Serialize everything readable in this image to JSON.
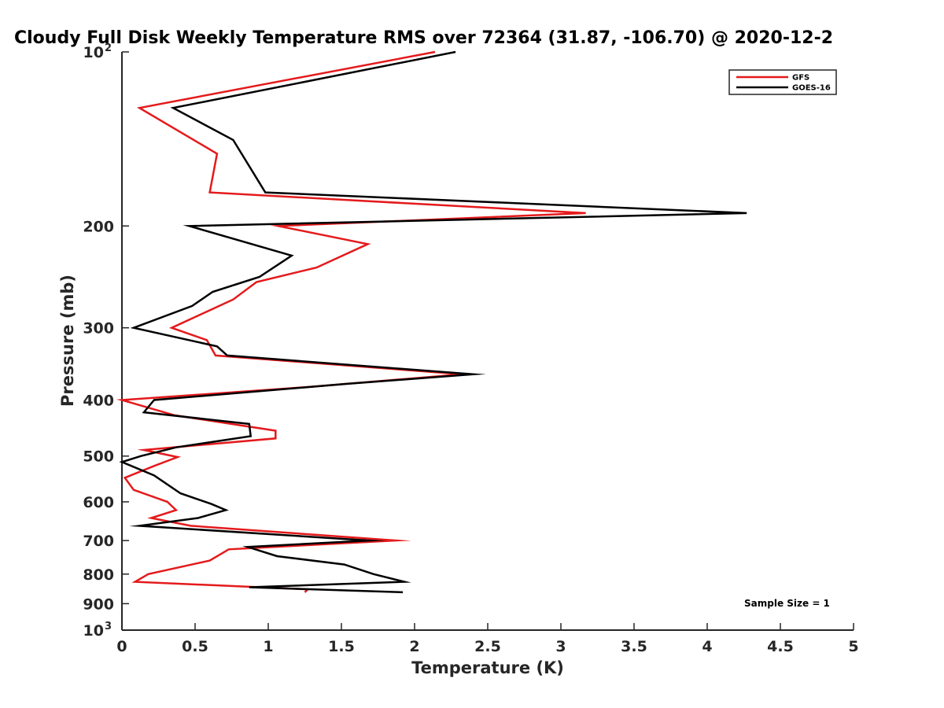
{
  "chart_data": {
    "type": "line",
    "title": "Cloudy Full Disk Weekly Temperature RMS over 72364 (31.87, -106.70) @ 2020-12-2",
    "xlabel": "Temperature (K)",
    "ylabel": "Pressure (mb)",
    "xlim": [
      0,
      5
    ],
    "ylim": [
      100,
      1000
    ],
    "y_scale": "log",
    "y_reversed": true,
    "x_ticks": [
      "0",
      "0.5",
      "1",
      "1.5",
      "2",
      "2.5",
      "3",
      "3.5",
      "4",
      "4.5",
      "5"
    ],
    "y_ticks": [
      {
        "value": 100,
        "base": "10",
        "exp": "2"
      },
      {
        "value": 200,
        "label": "200"
      },
      {
        "value": 300,
        "label": "300"
      },
      {
        "value": 400,
        "label": "400"
      },
      {
        "value": 500,
        "label": "500"
      },
      {
        "value": 600,
        "label": "600"
      },
      {
        "value": 700,
        "label": "700"
      },
      {
        "value": 800,
        "label": "800"
      },
      {
        "value": 900,
        "label": "900"
      },
      {
        "value": 1000,
        "base": "10",
        "exp": "3"
      }
    ],
    "grid": false,
    "legend_position": "top-right",
    "annotation": "Sample Size = 1",
    "series": [
      {
        "name": "GFS",
        "color": "#e41a1c",
        "points": [
          [
            2.14,
            100
          ],
          [
            0.12,
            125
          ],
          [
            0.65,
            150
          ],
          [
            0.6,
            175
          ],
          [
            3.17,
            190
          ],
          [
            1.07,
            200
          ],
          [
            1.68,
            215
          ],
          [
            1.33,
            236
          ],
          [
            0.92,
            250
          ],
          [
            0.76,
            268
          ],
          [
            0.34,
            300
          ],
          [
            0.58,
            315
          ],
          [
            0.64,
            335
          ],
          [
            2.33,
            361
          ],
          [
            1.26,
            380
          ],
          [
            0.0,
            400
          ],
          [
            0.36,
            425
          ],
          [
            1.05,
            452
          ],
          [
            1.05,
            466
          ],
          [
            0.15,
            488
          ],
          [
            0.38,
            502
          ],
          [
            0.22,
            520
          ],
          [
            0.02,
            545
          ],
          [
            0.08,
            572
          ],
          [
            0.31,
            600
          ],
          [
            0.37,
            620
          ],
          [
            0.2,
            640
          ],
          [
            0.47,
            660
          ],
          [
            1.87,
            700
          ],
          [
            0.73,
            725
          ],
          [
            0.6,
            758
          ],
          [
            0.18,
            800
          ],
          [
            0.09,
            825
          ],
          [
            1.27,
            850
          ],
          [
            1.25,
            860
          ]
        ]
      },
      {
        "name": "GOES-16",
        "color": "#000000",
        "points": [
          [
            2.28,
            100
          ],
          [
            0.35,
            125
          ],
          [
            0.76,
            142
          ],
          [
            0.98,
            175
          ],
          [
            4.27,
            190
          ],
          [
            0.46,
            200
          ],
          [
            1.16,
            225
          ],
          [
            0.94,
            245
          ],
          [
            0.62,
            260
          ],
          [
            0.48,
            275
          ],
          [
            0.08,
            300
          ],
          [
            0.65,
            323
          ],
          [
            0.72,
            335
          ],
          [
            2.4,
            361
          ],
          [
            1.54,
            375
          ],
          [
            0.22,
            400
          ],
          [
            0.15,
            420
          ],
          [
            0.87,
            440
          ],
          [
            0.88,
            462
          ],
          [
            0.37,
            483
          ],
          [
            0.13,
            500
          ],
          [
            0.0,
            512
          ],
          [
            0.22,
            540
          ],
          [
            0.4,
            580
          ],
          [
            0.61,
            605
          ],
          [
            0.71,
            620
          ],
          [
            0.52,
            640
          ],
          [
            0.12,
            660
          ],
          [
            1.69,
            700
          ],
          [
            0.86,
            718
          ],
          [
            1.06,
            745
          ],
          [
            1.52,
            770
          ],
          [
            1.72,
            800
          ],
          [
            1.93,
            825
          ],
          [
            0.87,
            843
          ],
          [
            1.92,
            860
          ]
        ]
      }
    ]
  }
}
